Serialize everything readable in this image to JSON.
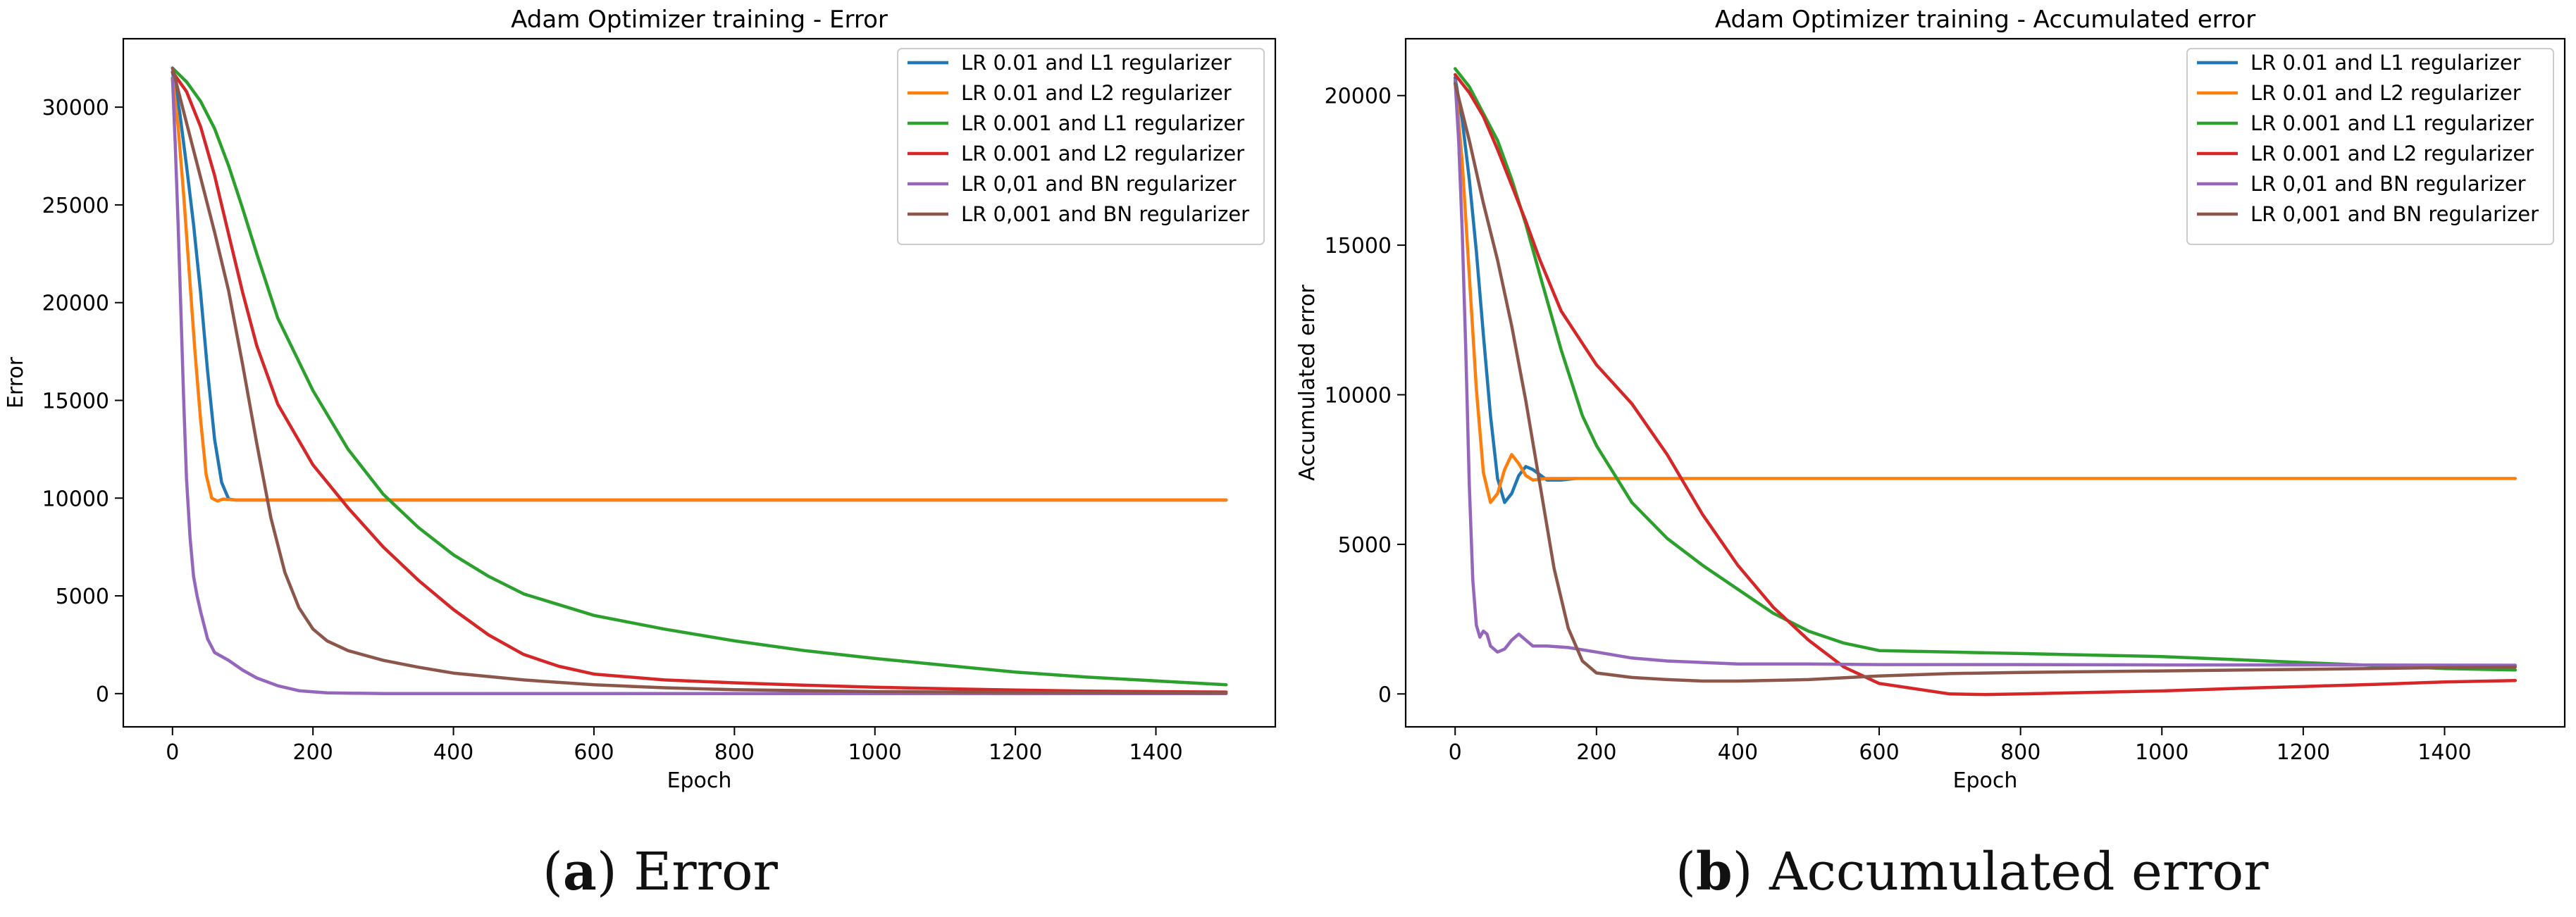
{
  "colors": {
    "blue": "#1f77b4",
    "orange": "#ff7f0e",
    "green": "#2ca02c",
    "red": "#d62728",
    "purple": "#9467bd",
    "brown": "#8c564b"
  },
  "captions": [
    {
      "letter": "a",
      "text": "Error"
    },
    {
      "letter": "b",
      "text": "Accumulated error"
    }
  ],
  "chart_data": [
    {
      "type": "line",
      "title": "Adam Optimizer training - Error",
      "xlabel": "Epoch",
      "ylabel": "Error",
      "xlim": [
        -70,
        1570
      ],
      "ylim": [
        -1700,
        33500
      ],
      "xticks": [
        0,
        200,
        400,
        600,
        800,
        1000,
        1200,
        1400
      ],
      "yticks": [
        0,
        5000,
        10000,
        15000,
        20000,
        25000,
        30000
      ],
      "legend": "top-right",
      "series": [
        {
          "name": "LR 0.01 and L1 regularizer",
          "color": "#1f77b4",
          "points": [
            [
              0,
              31800
            ],
            [
              10,
              29800
            ],
            [
              20,
              27000
            ],
            [
              30,
              24000
            ],
            [
              40,
              20500
            ],
            [
              50,
              16500
            ],
            [
              60,
              13000
            ],
            [
              70,
              10800
            ],
            [
              80,
              9950
            ],
            [
              90,
              9900
            ],
            [
              120,
              9900
            ],
            [
              1500,
              9900
            ]
          ]
        },
        {
          "name": "LR 0.01 and L2 regularizer",
          "color": "#ff7f0e",
          "points": [
            [
              0,
              31500
            ],
            [
              8,
              29000
            ],
            [
              16,
              25500
            ],
            [
              24,
              21500
            ],
            [
              32,
              17500
            ],
            [
              40,
              14000
            ],
            [
              48,
              11200
            ],
            [
              56,
              10000
            ],
            [
              64,
              9850
            ],
            [
              72,
              9950
            ],
            [
              90,
              9900
            ],
            [
              1500,
              9900
            ]
          ]
        },
        {
          "name": "LR 0.001 and L1 regularizer",
          "color": "#2ca02c",
          "points": [
            [
              0,
              32000
            ],
            [
              20,
              31300
            ],
            [
              40,
              30300
            ],
            [
              60,
              28900
            ],
            [
              80,
              27000
            ],
            [
              100,
              24800
            ],
            [
              120,
              22500
            ],
            [
              150,
              19200
            ],
            [
              200,
              15500
            ],
            [
              250,
              12500
            ],
            [
              300,
              10200
            ],
            [
              350,
              8500
            ],
            [
              400,
              7100
            ],
            [
              450,
              6000
            ],
            [
              500,
              5100
            ],
            [
              600,
              4000
            ],
            [
              700,
              3300
            ],
            [
              800,
              2700
            ],
            [
              900,
              2200
            ],
            [
              1000,
              1800
            ],
            [
              1100,
              1450
            ],
            [
              1200,
              1100
            ],
            [
              1300,
              850
            ],
            [
              1400,
              650
            ],
            [
              1500,
              450
            ]
          ]
        },
        {
          "name": "LR 0.001 and L2 regularizer",
          "color": "#d62728",
          "points": [
            [
              0,
              31800
            ],
            [
              20,
              30800
            ],
            [
              40,
              29000
            ],
            [
              60,
              26500
            ],
            [
              80,
              23500
            ],
            [
              100,
              20500
            ],
            [
              120,
              17800
            ],
            [
              150,
              14800
            ],
            [
              200,
              11700
            ],
            [
              250,
              9500
            ],
            [
              300,
              7500
            ],
            [
              350,
              5800
            ],
            [
              400,
              4300
            ],
            [
              450,
              3000
            ],
            [
              500,
              2000
            ],
            [
              550,
              1400
            ],
            [
              600,
              1000
            ],
            [
              700,
              700
            ],
            [
              800,
              550
            ],
            [
              900,
              430
            ],
            [
              1000,
              330
            ],
            [
              1100,
              250
            ],
            [
              1200,
              180
            ],
            [
              1300,
              130
            ],
            [
              1400,
              100
            ],
            [
              1500,
              80
            ]
          ]
        },
        {
          "name": "LR 0,01 and BN regularizer",
          "color": "#9467bd",
          "points": [
            [
              0,
              31500
            ],
            [
              4,
              28000
            ],
            [
              8,
              24000
            ],
            [
              12,
              19500
            ],
            [
              16,
              15000
            ],
            [
              20,
              11000
            ],
            [
              25,
              8000
            ],
            [
              30,
              6000
            ],
            [
              35,
              5000
            ],
            [
              40,
              4200
            ],
            [
              50,
              2800
            ],
            [
              60,
              2100
            ],
            [
              80,
              1700
            ],
            [
              100,
              1200
            ],
            [
              120,
              800
            ],
            [
              150,
              400
            ],
            [
              180,
              150
            ],
            [
              220,
              40
            ],
            [
              300,
              0
            ],
            [
              1500,
              0
            ]
          ]
        },
        {
          "name": "LR 0,001 and BN regularizer",
          "color": "#8c564b",
          "points": [
            [
              0,
              32000
            ],
            [
              20,
              29200
            ],
            [
              40,
              26400
            ],
            [
              60,
              23600
            ],
            [
              80,
              20600
            ],
            [
              100,
              16800
            ],
            [
              120,
              12800
            ],
            [
              140,
              9000
            ],
            [
              160,
              6200
            ],
            [
              180,
              4400
            ],
            [
              200,
              3300
            ],
            [
              220,
              2700
            ],
            [
              250,
              2200
            ],
            [
              300,
              1700
            ],
            [
              350,
              1350
            ],
            [
              400,
              1050
            ],
            [
              500,
              700
            ],
            [
              600,
              450
            ],
            [
              700,
              300
            ],
            [
              800,
              200
            ],
            [
              1000,
              100
            ],
            [
              1200,
              60
            ],
            [
              1500,
              30
            ]
          ]
        }
      ]
    },
    {
      "type": "line",
      "title": "Adam Optimizer training - Accumulated error",
      "xlabel": "Epoch",
      "ylabel": "Accumulated error",
      "xlim": [
        -70,
        1570
      ],
      "ylim": [
        -1100,
        21900
      ],
      "xticks": [
        0,
        200,
        400,
        600,
        800,
        1000,
        1200,
        1400
      ],
      "yticks": [
        0,
        5000,
        10000,
        15000,
        20000
      ],
      "legend": "top-right",
      "series": [
        {
          "name": "LR 0.01 and L1 regularizer",
          "color": "#1f77b4",
          "points": [
            [
              0,
              20600
            ],
            [
              10,
              19200
            ],
            [
              20,
              17200
            ],
            [
              30,
              14800
            ],
            [
              40,
              12000
            ],
            [
              50,
              9300
            ],
            [
              60,
              7200
            ],
            [
              70,
              6400
            ],
            [
              80,
              6700
            ],
            [
              90,
              7300
            ],
            [
              100,
              7600
            ],
            [
              110,
              7500
            ],
            [
              130,
              7150
            ],
            [
              150,
              7150
            ],
            [
              170,
              7200
            ]
          ]
        },
        {
          "name": "LR 0.01 and L2 regularizer",
          "color": "#ff7f0e",
          "points": [
            [
              0,
              20500
            ],
            [
              10,
              17800
            ],
            [
              20,
              14000
            ],
            [
              30,
              10200
            ],
            [
              40,
              7400
            ],
            [
              50,
              6400
            ],
            [
              60,
              6700
            ],
            [
              70,
              7500
            ],
            [
              80,
              8000
            ],
            [
              90,
              7700
            ],
            [
              100,
              7300
            ],
            [
              110,
              7150
            ],
            [
              130,
              7200
            ],
            [
              1500,
              7200
            ]
          ]
        },
        {
          "name": "LR 0.001 and L1 regularizer",
          "color": "#2ca02c",
          "points": [
            [
              0,
              20900
            ],
            [
              20,
              20300
            ],
            [
              40,
              19400
            ],
            [
              60,
              18500
            ],
            [
              80,
              17200
            ],
            [
              100,
              15700
            ],
            [
              120,
              14000
            ],
            [
              150,
              11500
            ],
            [
              180,
              9300
            ],
            [
              200,
              8300
            ],
            [
              250,
              6400
            ],
            [
              300,
              5200
            ],
            [
              350,
              4300
            ],
            [
              400,
              3500
            ],
            [
              450,
              2700
            ],
            [
              500,
              2100
            ],
            [
              550,
              1700
            ],
            [
              600,
              1450
            ],
            [
              700,
              1400
            ],
            [
              800,
              1350
            ],
            [
              900,
              1300
            ],
            [
              1000,
              1250
            ],
            [
              1100,
              1150
            ],
            [
              1200,
              1050
            ],
            [
              1300,
              950
            ],
            [
              1400,
              850
            ],
            [
              1500,
              800
            ]
          ]
        },
        {
          "name": "LR 0.001 and L2 regularizer",
          "color": "#d62728",
          "points": [
            [
              0,
              20700
            ],
            [
              20,
              20100
            ],
            [
              40,
              19300
            ],
            [
              60,
              18200
            ],
            [
              80,
              17000
            ],
            [
              100,
              15800
            ],
            [
              120,
              14500
            ],
            [
              150,
              12800
            ],
            [
              200,
              11000
            ],
            [
              250,
              9700
            ],
            [
              300,
              8000
            ],
            [
              350,
              6000
            ],
            [
              400,
              4300
            ],
            [
              450,
              2900
            ],
            [
              500,
              1800
            ],
            [
              550,
              900
            ],
            [
              600,
              350
            ],
            [
              700,
              0
            ],
            [
              750,
              -20
            ],
            [
              800,
              0
            ],
            [
              900,
              50
            ],
            [
              1000,
              100
            ],
            [
              1100,
              180
            ],
            [
              1200,
              250
            ],
            [
              1300,
              320
            ],
            [
              1400,
              400
            ],
            [
              1500,
              450
            ]
          ]
        },
        {
          "name": "LR 0,01 and BN regularizer",
          "color": "#9467bd",
          "points": [
            [
              0,
              20500
            ],
            [
              5,
              18500
            ],
            [
              10,
              15500
            ],
            [
              15,
              11500
            ],
            [
              20,
              7000
            ],
            [
              25,
              3800
            ],
            [
              30,
              2300
            ],
            [
              35,
              1900
            ],
            [
              40,
              2100
            ],
            [
              45,
              2000
            ],
            [
              50,
              1600
            ],
            [
              60,
              1400
            ],
            [
              70,
              1500
            ],
            [
              80,
              1800
            ],
            [
              90,
              2000
            ],
            [
              100,
              1800
            ],
            [
              110,
              1600
            ],
            [
              130,
              1600
            ],
            [
              160,
              1550
            ],
            [
              200,
              1400
            ],
            [
              250,
              1200
            ],
            [
              300,
              1100
            ],
            [
              400,
              1000
            ],
            [
              500,
              1000
            ],
            [
              600,
              980
            ],
            [
              800,
              980
            ],
            [
              1000,
              970
            ],
            [
              1200,
              970
            ],
            [
              1500,
              960
            ]
          ]
        },
        {
          "name": "LR 0,001 and BN regularizer",
          "color": "#8c564b",
          "points": [
            [
              0,
              20400
            ],
            [
              20,
              18500
            ],
            [
              40,
              16400
            ],
            [
              60,
              14500
            ],
            [
              80,
              12300
            ],
            [
              100,
              9800
            ],
            [
              120,
              7000
            ],
            [
              140,
              4200
            ],
            [
              160,
              2200
            ],
            [
              180,
              1100
            ],
            [
              200,
              700
            ],
            [
              250,
              550
            ],
            [
              300,
              480
            ],
            [
              350,
              430
            ],
            [
              400,
              430
            ],
            [
              500,
              480
            ],
            [
              600,
              600
            ],
            [
              700,
              680
            ],
            [
              800,
              720
            ],
            [
              1000,
              770
            ],
            [
              1200,
              820
            ],
            [
              1400,
              880
            ],
            [
              1500,
              900
            ]
          ]
        }
      ]
    }
  ]
}
